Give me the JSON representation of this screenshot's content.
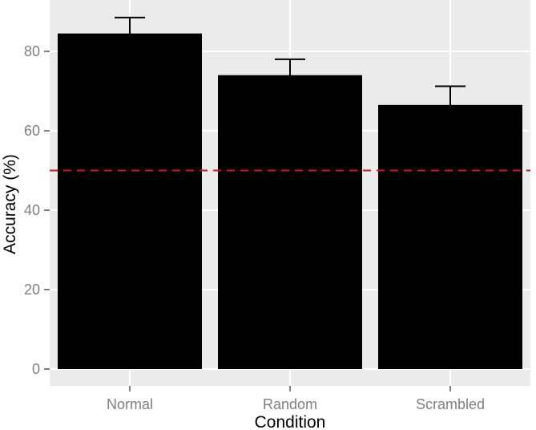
{
  "chart_data": {
    "type": "bar",
    "title": "",
    "xlabel": "Condition",
    "ylabel": "Accuracy (%)",
    "categories": [
      "Normal",
      "Random",
      "Scrambled"
    ],
    "values": [
      84.5,
      74,
      66.5
    ],
    "error_upper": [
      88.5,
      78,
      71.2
    ],
    "error_lower": [
      80.5,
      70,
      61.8
    ],
    "reference_line": {
      "value": 50,
      "style": "dashed",
      "color": "#cc1a1a"
    },
    "ylim": [
      0,
      90
    ],
    "yticks": [
      0,
      20,
      40,
      60,
      80
    ],
    "ytick_labels": [
      "0",
      "20",
      "40",
      "60",
      "80"
    ],
    "grid": true,
    "colors": {
      "panel_bg": "#ebebeb",
      "grid_major": "#ffffff",
      "bar_fill": "#000000",
      "tick_mark": "#7f7f7f"
    }
  }
}
